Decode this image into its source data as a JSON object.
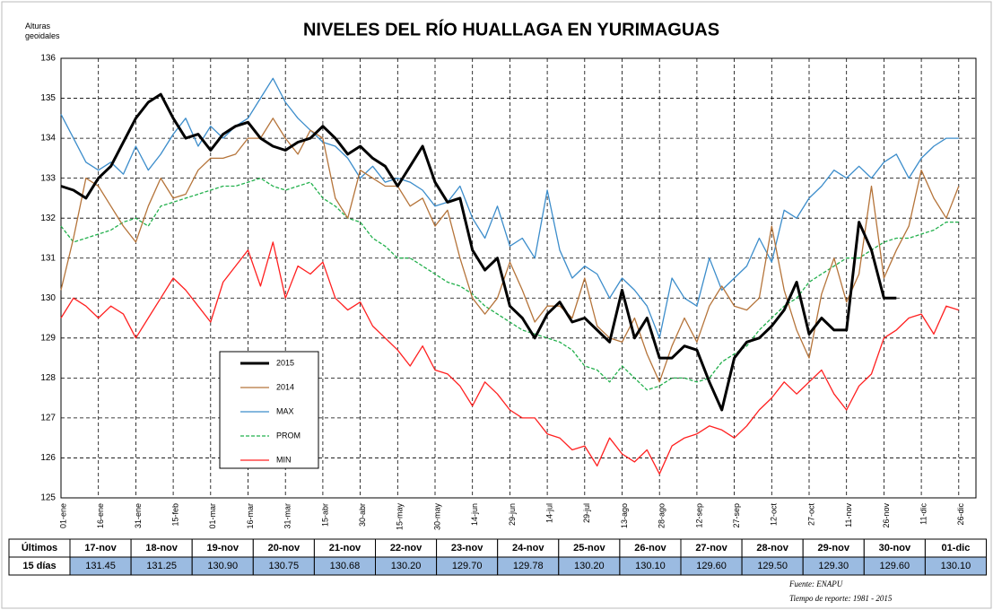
{
  "chart_data": {
    "type": "line",
    "title": "NIVELES DEL RÍO HUALLAGA  EN YURIMAGUAS",
    "ylabel": "Alturas geoidales",
    "categories": [
      "01-ene",
      null,
      null,
      "16-ene",
      null,
      null,
      "31-ene",
      null,
      null,
      "15-feb",
      null,
      null,
      "01-mar",
      null,
      null,
      "16-mar",
      null,
      null,
      "31-mar",
      null,
      null,
      "15-abr",
      null,
      null,
      "30-abr",
      null,
      null,
      "15-may",
      null,
      null,
      "30-may",
      null,
      null,
      "14-jun",
      null,
      null,
      "29-jun",
      null,
      null,
      "14-jul",
      null,
      null,
      "29-jul",
      null,
      null,
      "13-ago",
      null,
      null,
      "28-ago",
      null,
      null,
      "12-sep",
      null,
      null,
      "27-sep",
      null,
      null,
      "12-oct",
      null,
      null,
      "27-oct",
      null,
      null,
      "11-nov",
      null,
      null,
      "26-nov",
      null,
      null,
      "11-dic",
      null,
      null,
      "26-dic"
    ],
    "ylim": [
      125,
      136
    ],
    "yticks": [
      125,
      126,
      127,
      128,
      129,
      130,
      131,
      132,
      133,
      134,
      135,
      136
    ],
    "grid": true,
    "series": [
      {
        "name": "2015",
        "color": "#000000",
        "linestyle": "solid",
        "values": [
          132.8,
          132.7,
          132.5,
          133.0,
          133.3,
          133.9,
          134.5,
          134.9,
          135.1,
          134.5,
          134.0,
          134.1,
          133.7,
          134.1,
          134.3,
          134.4,
          134.0,
          133.8,
          133.7,
          133.9,
          134.0,
          134.3,
          134.0,
          133.6,
          133.8,
          133.5,
          133.3,
          132.8,
          133.3,
          133.8,
          132.9,
          132.4,
          132.5,
          131.2,
          130.7,
          131.0,
          129.8,
          129.5,
          129.0,
          129.6,
          129.9,
          129.4,
          129.5,
          129.2,
          128.9,
          130.2,
          129.0,
          129.5,
          128.5,
          128.5,
          128.8,
          128.7,
          127.9,
          127.2,
          128.5,
          128.9,
          129.0,
          129.3,
          129.7,
          130.4,
          129.1,
          129.5,
          129.2,
          129.2,
          131.9,
          131.2,
          130.0,
          130.0,
          null,
          null,
          null,
          null,
          null
        ]
      },
      {
        "name": "2014",
        "color": "#b5743a",
        "linestyle": "solid",
        "values": [
          130.2,
          131.5,
          133.0,
          132.8,
          132.3,
          131.8,
          131.4,
          132.3,
          133.0,
          132.5,
          132.6,
          133.2,
          133.5,
          133.5,
          133.6,
          134.0,
          134.0,
          134.5,
          134.0,
          133.6,
          134.2,
          134.0,
          132.5,
          132.0,
          133.2,
          133.0,
          132.8,
          132.8,
          132.3,
          132.5,
          131.8,
          132.2,
          131.0,
          130.0,
          129.6,
          130.0,
          130.9,
          130.2,
          129.4,
          129.8,
          129.8,
          129.5,
          130.5,
          129.3,
          129.0,
          128.9,
          129.5,
          128.6,
          127.9,
          128.8,
          129.5,
          128.9,
          129.8,
          130.3,
          129.8,
          129.7,
          130.0,
          131.8,
          130.2,
          129.2,
          128.5,
          130.1,
          131.0,
          129.9,
          130.6,
          132.8,
          130.5,
          131.2,
          131.8,
          133.2,
          132.5,
          132.0,
          132.8
        ]
      },
      {
        "name": "MAX",
        "color": "#3c8dcb",
        "linestyle": "solid",
        "values": [
          134.6,
          134.0,
          133.4,
          133.2,
          133.4,
          133.1,
          133.8,
          133.2,
          133.6,
          134.1,
          134.5,
          133.8,
          134.3,
          134.0,
          134.3,
          134.5,
          135.0,
          135.5,
          134.9,
          134.5,
          134.2,
          133.9,
          133.8,
          133.5,
          133.0,
          133.3,
          132.9,
          133.0,
          132.9,
          132.7,
          132.3,
          132.4,
          132.8,
          132.0,
          131.5,
          132.3,
          131.3,
          131.5,
          131.0,
          132.7,
          131.2,
          130.5,
          130.8,
          130.6,
          130.0,
          130.5,
          130.2,
          129.8,
          129.0,
          130.5,
          130.0,
          129.8,
          131.0,
          130.2,
          130.5,
          130.8,
          131.5,
          130.9,
          132.2,
          132.0,
          132.5,
          132.8,
          133.2,
          133.0,
          133.3,
          133.0,
          133.4,
          133.6,
          133.0,
          133.5,
          133.8,
          134.0,
          134.0
        ]
      },
      {
        "name": "PROM",
        "color": "#22b04c",
        "linestyle": "dashed",
        "values": [
          131.8,
          131.4,
          131.5,
          131.6,
          131.7,
          131.9,
          132.0,
          131.8,
          132.3,
          132.4,
          132.5,
          132.6,
          132.7,
          132.8,
          132.8,
          132.9,
          133.0,
          132.8,
          132.7,
          132.8,
          132.9,
          132.5,
          132.3,
          132.0,
          131.9,
          131.5,
          131.3,
          131.0,
          131.0,
          130.8,
          130.6,
          130.4,
          130.3,
          130.1,
          129.8,
          129.6,
          129.4,
          129.2,
          129.1,
          129.0,
          128.9,
          128.7,
          128.3,
          128.2,
          127.9,
          128.3,
          128.0,
          127.7,
          127.8,
          128.0,
          128.0,
          127.9,
          128.0,
          128.4,
          128.6,
          128.8,
          129.2,
          129.5,
          129.8,
          130.0,
          130.4,
          130.6,
          130.8,
          131.0,
          131.0,
          131.2,
          131.4,
          131.5,
          131.5,
          131.6,
          131.7,
          131.9,
          131.9
        ]
      },
      {
        "name": "MIN",
        "color": "#ff2020",
        "linestyle": "solid",
        "values": [
          129.5,
          130.0,
          129.8,
          129.5,
          129.8,
          129.6,
          129.0,
          129.5,
          130.0,
          130.5,
          130.2,
          129.8,
          129.4,
          130.4,
          130.8,
          131.2,
          130.3,
          131.4,
          130.0,
          130.8,
          130.6,
          130.9,
          130.0,
          129.7,
          129.9,
          129.3,
          129.0,
          128.7,
          128.3,
          128.8,
          128.2,
          128.1,
          127.8,
          127.3,
          127.9,
          127.6,
          127.2,
          127.0,
          127.0,
          126.6,
          126.5,
          126.2,
          126.3,
          125.8,
          126.5,
          126.1,
          125.9,
          126.2,
          125.6,
          126.3,
          126.5,
          126.6,
          126.8,
          126.7,
          126.5,
          126.8,
          127.2,
          127.5,
          127.9,
          127.6,
          127.9,
          128.2,
          127.6,
          127.2,
          127.8,
          128.1,
          129.0,
          129.2,
          129.5,
          129.6,
          129.1,
          129.8,
          129.7
        ]
      }
    ],
    "annotations": [
      "Fuente: ENAPU",
      "Tiempo de reporte: 1981 - 2015"
    ]
  },
  "table": {
    "row_headers": [
      "Últimos",
      "15 días"
    ],
    "columns": [
      "17-nov",
      "18-nov",
      "19-nov",
      "20-nov",
      "21-nov",
      "22-nov",
      "23-nov",
      "24-nov",
      "25-nov",
      "26-nov",
      "27-nov",
      "28-nov",
      "29-nov",
      "30-nov",
      "01-dic"
    ],
    "values": [
      "131.45",
      "131.25",
      "130.90",
      "130.75",
      "130.68",
      "130.20",
      "129.70",
      "129.78",
      "130.20",
      "130.10",
      "129.60",
      "129.50",
      "129.30",
      "129.60",
      "130.10"
    ]
  }
}
